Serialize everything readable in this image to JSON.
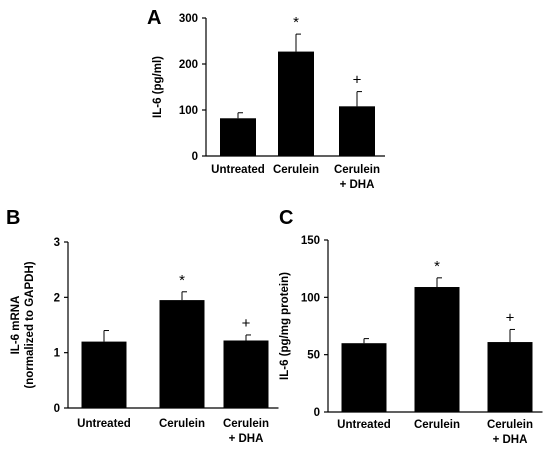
{
  "chart_data": [
    {
      "panel": "A",
      "type": "bar",
      "categories": [
        [
          "Untreated"
        ],
        [
          "Cerulein"
        ],
        [
          "Cerulein",
          "+ DHA"
        ]
      ],
      "values": [
        82,
        227,
        108
      ],
      "errors": [
        12,
        38,
        32
      ],
      "markers": [
        "",
        "*",
        "+"
      ],
      "ylabel": [
        "IL-6 (pg/ml)"
      ],
      "ylim": [
        0,
        300
      ],
      "yticks": [
        0,
        100,
        200,
        300
      ],
      "colors": {
        "bar": "#000000",
        "axis": "#000000"
      }
    },
    {
      "panel": "B",
      "type": "bar",
      "categories": [
        [
          "Untreated"
        ],
        [
          "Cerulein"
        ],
        [
          "Cerulein",
          "+ DHA"
        ]
      ],
      "values": [
        1.2,
        1.95,
        1.22
      ],
      "errors": [
        0.2,
        0.15,
        0.1
      ],
      "markers": [
        "",
        "*",
        "+"
      ],
      "ylabel": [
        "IL-6 mRNA",
        "(normalized to GAPDH)"
      ],
      "ylim": [
        0,
        3
      ],
      "yticks": [
        0,
        1,
        2,
        3
      ],
      "colors": {
        "bar": "#000000",
        "axis": "#000000"
      }
    },
    {
      "panel": "C",
      "type": "bar",
      "categories": [
        [
          "Untreated"
        ],
        [
          "Cerulein"
        ],
        [
          "Cerulein",
          "+ DHA"
        ]
      ],
      "values": [
        60,
        109,
        61
      ],
      "errors": [
        4,
        8,
        11
      ],
      "markers": [
        "",
        "*",
        "+"
      ],
      "ylabel": [
        "IL-6 (pg/mg protein)"
      ],
      "ylim": [
        0,
        150
      ],
      "yticks": [
        0,
        50,
        100,
        150
      ],
      "colors": {
        "bar": "#000000",
        "axis": "#000000"
      }
    }
  ]
}
